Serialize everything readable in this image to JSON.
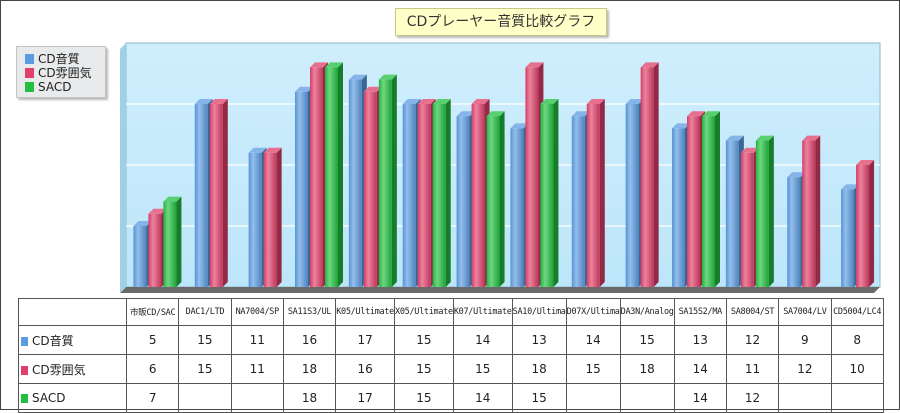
{
  "chart_data": {
    "type": "bar",
    "title": "CDプレーヤー音質比較グラフ",
    "categories": [
      "市販CD/SAC",
      "DAC1/LTD",
      "NA7004/SP",
      "SA11S3/UL",
      "K05/Ultimate",
      "X05/Ultimate",
      "K07/Ultimate",
      "SA10/Ultima",
      "D07X/Ultima",
      "DA3N/Analog",
      "SA15S2/MA",
      "SA8004/ST",
      "SA7004/LV",
      "CD5004/LC4"
    ],
    "series": [
      {
        "name": "CD音質",
        "color": "#5b9be0",
        "values": [
          5,
          15,
          11,
          16,
          17,
          15,
          14,
          13,
          14,
          15,
          13,
          12,
          9,
          8
        ]
      },
      {
        "name": "CD雰囲気",
        "color": "#e0406a",
        "values": [
          6,
          15,
          11,
          18,
          16,
          15,
          15,
          18,
          15,
          18,
          14,
          11,
          12,
          10
        ]
      },
      {
        "name": "SACD",
        "color": "#22c040",
        "values": [
          7,
          null,
          null,
          18,
          17,
          15,
          14,
          15,
          null,
          null,
          14,
          12,
          null,
          null
        ]
      }
    ],
    "ylim": [
      0,
      20
    ],
    "grid": true,
    "legend": "left"
  }
}
